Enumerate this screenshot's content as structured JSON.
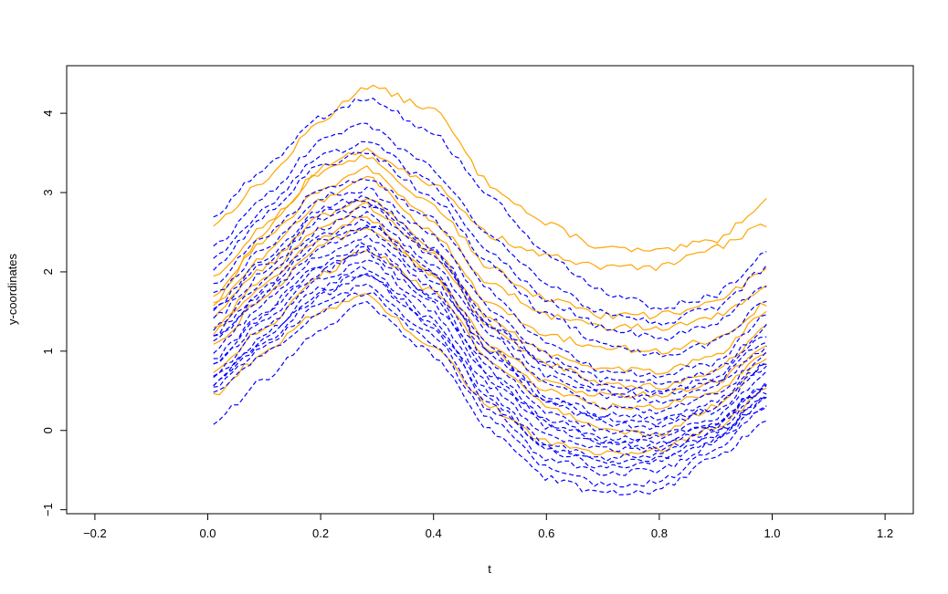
{
  "chart_data": {
    "type": "line",
    "title": "",
    "xlabel": "t",
    "ylabel": "y-coordinates",
    "xlim": [
      -0.25,
      1.25
    ],
    "ylim": [
      -1.05,
      4.6
    ],
    "x_ticks": [
      -0.2,
      0.0,
      0.2,
      0.4,
      0.6,
      0.8,
      1.0,
      1.2
    ],
    "x_tick_labels": [
      "−0.2",
      "0.0",
      "0.2",
      "0.4",
      "0.6",
      "0.8",
      "1.0",
      "1.2"
    ],
    "y_ticks": [
      -1,
      0,
      1,
      2,
      3,
      4
    ],
    "y_tick_labels": [
      "−1",
      "0",
      "1",
      "2",
      "3",
      "4"
    ],
    "grid": false,
    "legend": "none",
    "t": [
      0.01,
      0.1,
      0.2,
      0.28,
      0.4,
      0.5,
      0.6,
      0.7,
      0.8,
      0.9,
      0.99
    ],
    "series": [
      {
        "style": "solid",
        "color": "#FFA500",
        "values": [
          2.6,
          3.15,
          3.9,
          4.35,
          4.05,
          3.1,
          2.6,
          2.3,
          2.25,
          2.4,
          2.9
        ]
      },
      {
        "style": "solid",
        "color": "#FFA500",
        "values": [
          1.6,
          2.5,
          3.3,
          3.55,
          3.1,
          2.45,
          2.2,
          2.05,
          2.05,
          2.3,
          2.6
        ]
      },
      {
        "style": "solid",
        "color": "#FFA500",
        "values": [
          1.9,
          2.6,
          3.25,
          3.45,
          2.85,
          2.05,
          1.65,
          1.45,
          1.45,
          1.6,
          2.05
        ]
      },
      {
        "style": "solid",
        "color": "#FFA500",
        "values": [
          1.7,
          2.4,
          3.05,
          3.3,
          2.65,
          1.85,
          1.45,
          1.3,
          1.3,
          1.45,
          1.8
        ]
      },
      {
        "style": "solid",
        "color": "#FFA500",
        "values": [
          1.55,
          2.2,
          2.9,
          3.2,
          2.5,
          1.6,
          1.2,
          1.05,
          1.0,
          1.15,
          1.6
        ]
      },
      {
        "style": "solid",
        "color": "#FFA500",
        "values": [
          1.45,
          2.05,
          2.7,
          2.95,
          2.3,
          1.4,
          0.95,
          0.8,
          0.75,
          0.95,
          1.5
        ]
      },
      {
        "style": "solid",
        "color": "#FFA500",
        "values": [
          1.3,
          1.95,
          2.55,
          2.85,
          2.2,
          1.3,
          0.85,
          0.6,
          0.55,
          0.75,
          1.3
        ]
      },
      {
        "style": "solid",
        "color": "#FFA500",
        "values": [
          1.05,
          1.7,
          2.35,
          2.55,
          1.95,
          1.1,
          0.6,
          0.45,
          0.45,
          0.6,
          1.1
        ]
      },
      {
        "style": "solid",
        "color": "#FFA500",
        "values": [
          0.75,
          1.3,
          1.95,
          2.3,
          1.75,
          0.9,
          0.3,
          0.0,
          -0.05,
          0.3,
          0.9
        ]
      },
      {
        "style": "solid",
        "color": "#FFA500",
        "values": [
          0.45,
          1.0,
          1.5,
          1.7,
          1.05,
          0.3,
          -0.15,
          -0.3,
          -0.25,
          0.05,
          0.5
        ]
      },
      {
        "style": "solid",
        "color": "#FFA500",
        "values": [
          1.25,
          1.85,
          2.45,
          2.7,
          1.95,
          1.0,
          0.5,
          0.3,
          0.3,
          0.5,
          1.0
        ]
      },
      {
        "style": "dashed",
        "color": "#0000FF",
        "values": [
          2.7,
          3.3,
          3.95,
          4.2,
          3.75,
          2.95,
          2.2,
          1.75,
          1.55,
          1.7,
          2.25
        ]
      },
      {
        "style": "dashed",
        "color": "#0000FF",
        "values": [
          2.3,
          2.95,
          3.65,
          3.85,
          3.3,
          2.45,
          1.85,
          1.5,
          1.35,
          1.55,
          2.05
        ]
      },
      {
        "style": "dashed",
        "color": "#0000FF",
        "values": [
          2.05,
          2.7,
          3.35,
          3.5,
          2.95,
          2.1,
          1.45,
          1.1,
          0.95,
          1.1,
          1.65
        ]
      },
      {
        "style": "dashed",
        "color": "#0000FF",
        "values": [
          1.85,
          2.45,
          3.05,
          3.2,
          2.65,
          1.75,
          1.1,
          0.75,
          0.7,
          0.85,
          1.45
        ]
      },
      {
        "style": "dashed",
        "color": "#0000FF",
        "values": [
          1.7,
          2.3,
          2.95,
          3.05,
          2.45,
          1.55,
          0.95,
          0.65,
          0.6,
          0.75,
          1.3
        ]
      },
      {
        "style": "dashed",
        "color": "#0000FF",
        "values": [
          1.55,
          2.15,
          2.8,
          2.95,
          2.3,
          1.4,
          0.85,
          0.55,
          0.5,
          0.65,
          1.2
        ]
      },
      {
        "style": "dashed",
        "color": "#0000FF",
        "values": [
          1.4,
          2.0,
          2.65,
          2.85,
          2.2,
          1.3,
          0.7,
          0.45,
          0.35,
          0.55,
          1.05
        ]
      },
      {
        "style": "dashed",
        "color": "#0000FF",
        "values": [
          1.3,
          1.9,
          2.55,
          2.75,
          2.1,
          1.2,
          0.6,
          0.3,
          0.25,
          0.45,
          0.95
        ]
      },
      {
        "style": "dashed",
        "color": "#0000FF",
        "values": [
          1.2,
          1.8,
          2.45,
          2.65,
          2.0,
          1.05,
          0.45,
          0.2,
          0.15,
          0.35,
          0.85
        ]
      },
      {
        "style": "dashed",
        "color": "#0000FF",
        "values": [
          1.1,
          1.7,
          2.3,
          2.55,
          1.9,
          0.95,
          0.35,
          0.1,
          0.05,
          0.25,
          0.8
        ]
      },
      {
        "style": "dashed",
        "color": "#0000FF",
        "values": [
          1.0,
          1.6,
          2.2,
          2.45,
          1.8,
          0.85,
          0.25,
          0.0,
          -0.05,
          0.15,
          0.7
        ]
      },
      {
        "style": "dashed",
        "color": "#0000FF",
        "values": [
          0.9,
          1.5,
          2.1,
          2.35,
          1.7,
          0.75,
          0.15,
          -0.1,
          -0.1,
          0.1,
          0.6
        ]
      },
      {
        "style": "dashed",
        "color": "#0000FF",
        "values": [
          0.8,
          1.4,
          2.0,
          2.25,
          1.6,
          0.65,
          0.05,
          -0.15,
          -0.2,
          0.05,
          0.55
        ]
      },
      {
        "style": "dashed",
        "color": "#0000FF",
        "values": [
          0.7,
          1.3,
          1.9,
          2.15,
          1.5,
          0.55,
          -0.05,
          -0.25,
          -0.25,
          0.0,
          0.5
        ]
      },
      {
        "style": "dashed",
        "color": "#0000FF",
        "values": [
          0.65,
          1.2,
          1.8,
          2.05,
          1.4,
          0.45,
          -0.15,
          -0.35,
          -0.3,
          -0.05,
          0.45
        ]
      },
      {
        "style": "dashed",
        "color": "#0000FF",
        "values": [
          0.6,
          1.1,
          1.7,
          1.95,
          1.3,
          0.35,
          -0.25,
          -0.45,
          -0.4,
          -0.1,
          0.4
        ]
      },
      {
        "style": "dashed",
        "color": "#0000FF",
        "values": [
          0.55,
          1.05,
          1.6,
          1.85,
          1.2,
          0.25,
          -0.35,
          -0.55,
          -0.5,
          -0.15,
          0.35
        ]
      },
      {
        "style": "dashed",
        "color": "#0000FF",
        "values": [
          0.45,
          0.95,
          1.5,
          1.75,
          1.1,
          0.15,
          -0.45,
          -0.7,
          -0.65,
          -0.25,
          0.3
        ]
      },
      {
        "style": "dashed",
        "color": "#0000FF",
        "values": [
          0.1,
          0.65,
          1.3,
          1.6,
          0.95,
          0.0,
          -0.6,
          -0.8,
          -0.75,
          -0.35,
          0.1
        ]
      },
      {
        "style": "dashed",
        "color": "#0000FF",
        "values": [
          1.5,
          2.1,
          2.75,
          2.9,
          2.25,
          1.35,
          0.8,
          0.5,
          0.45,
          0.6,
          1.15
        ]
      },
      {
        "style": "dashed",
        "color": "#0000FF",
        "values": [
          1.15,
          1.75,
          2.4,
          2.6,
          1.95,
          1.0,
          0.4,
          0.15,
          0.1,
          0.3,
          0.85
        ]
      },
      {
        "style": "dashed",
        "color": "#0000FF",
        "values": [
          0.85,
          1.45,
          2.05,
          2.3,
          1.65,
          0.7,
          0.1,
          -0.12,
          -0.15,
          0.08,
          0.6
        ]
      },
      {
        "style": "dashed",
        "color": "#0000FF",
        "values": [
          2.15,
          2.8,
          3.45,
          3.65,
          3.1,
          2.25,
          1.65,
          1.3,
          1.15,
          1.35,
          1.85
        ]
      },
      {
        "style": "dashed",
        "color": "#0000FF",
        "values": [
          0.6,
          1.15,
          1.75,
          2.0,
          1.35,
          0.4,
          -0.2,
          -0.4,
          -0.35,
          -0.08,
          0.42
        ]
      }
    ]
  }
}
